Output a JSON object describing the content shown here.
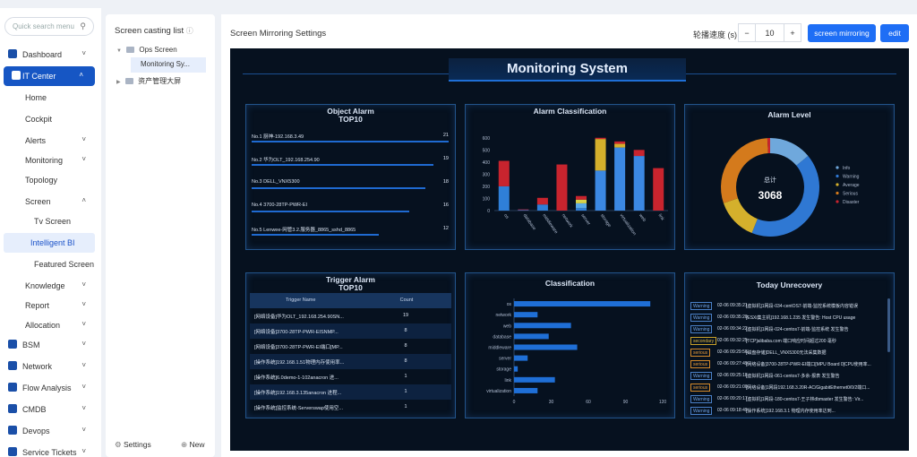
{
  "sidebar": {
    "search_placeholder": "Quick search menu",
    "items": [
      {
        "label": "Dashboard",
        "level": 0,
        "chevron": "down",
        "icon": "home-icon"
      },
      {
        "label": "IT Center",
        "level": 0,
        "chevron": "up",
        "icon": "monitor-icon",
        "active": true
      },
      {
        "label": "Home",
        "level": 1
      },
      {
        "label": "Cockpit",
        "level": 1
      },
      {
        "label": "Alerts",
        "level": 1,
        "chevron": "down"
      },
      {
        "label": "Monitoring",
        "level": 1,
        "chevron": "down"
      },
      {
        "label": "Topology",
        "level": 1
      },
      {
        "label": "Screen",
        "level": 1,
        "chevron": "up"
      },
      {
        "label": "Tv Screen",
        "level": 2
      },
      {
        "label": "Intelligent BI",
        "level": 2,
        "selected": true
      },
      {
        "label": "Featured Screen",
        "level": 2
      },
      {
        "label": "Knowledge",
        "level": 1,
        "chevron": "down"
      },
      {
        "label": "Report",
        "level": 1,
        "chevron": "down"
      },
      {
        "label": "Allocation",
        "level": 1,
        "chevron": "down"
      },
      {
        "label": "BSM",
        "level": 0,
        "chevron": "down",
        "icon": "bsm-icon"
      },
      {
        "label": "Network",
        "level": 0,
        "chevron": "down",
        "icon": "globe-icon"
      },
      {
        "label": "Flow Analysis",
        "level": 0,
        "chevron": "down",
        "icon": "flow-icon"
      },
      {
        "label": "CMDB",
        "level": 0,
        "chevron": "down",
        "icon": "database-icon"
      },
      {
        "label": "Devops",
        "level": 0,
        "chevron": "down",
        "icon": "gear-icon"
      },
      {
        "label": "Service Tickets",
        "level": 0,
        "chevron": "down",
        "icon": "ticket-icon"
      }
    ]
  },
  "tree": {
    "title": "Screen casting list",
    "nodes": [
      {
        "label": "Ops Screen",
        "expanded": true
      },
      {
        "label": "Monitoring Sy...",
        "child": true,
        "selected": true
      },
      {
        "label": "资产管理大屏",
        "expanded": false
      }
    ],
    "settings_label": "Settings",
    "new_label": "New"
  },
  "header": {
    "title": "Screen Mirroring Settings",
    "speed_label": "轮播速度 (s)",
    "speed_value": "10",
    "minus": "−",
    "plus": "+",
    "mirror_button": "screen mirroring",
    "edit_button": "edit"
  },
  "dashboard": {
    "title": "Monitoring System",
    "object_alarm": {
      "title": "Object Alarm\nTOP10",
      "rows": [
        {
          "name": "No.1  厨神-192.168.3.49",
          "value": 21
        },
        {
          "name": "No.2  华为OLT_192.168.254.90",
          "value": 19
        },
        {
          "name": "No.3  DELL_VNX5300",
          "value": 18
        },
        {
          "name": "No.4  3700-28TP-PWR-EI",
          "value": 16
        },
        {
          "name": "No.5  Lenwee-网管3.2.服务器_8865_sshd_8865",
          "value": 12
        }
      ]
    },
    "alarm_level": {
      "title": "Alarm Level",
      "center_label": "总计",
      "total": "3068",
      "legend": [
        "Info",
        "Warning",
        "Average",
        "Serious",
        "Disaster"
      ]
    },
    "trigger_alarm": {
      "title": "Trigger Alarm\nTOP10",
      "col_name": "Trigger Name",
      "col_count": "Count",
      "rows": [
        {
          "name": "[网络设备]华为OLT_192.168.254.90SN...",
          "count": 19
        },
        {
          "name": "[网络设备]3700-28TP-PWR-EISNMP...",
          "count": 8
        },
        {
          "name": "[网络设备]3700-28TP-PWR-EI端口[MP...",
          "count": 8
        },
        {
          "name": "[操作系统]192.168.1.51物理内存使用率...",
          "count": 8
        },
        {
          "name": "[操作系统]6.0demo-1-102anacron 进...",
          "count": 1
        },
        {
          "name": "[操作系统]192.168.3.135anacron 进程...",
          "count": 1
        },
        {
          "name": "[操作系统]监控系统-Serverswap使用空...",
          "count": 1
        }
      ]
    },
    "today_unrecovery": {
      "title": "Today Unrecovery",
      "rows": [
        {
          "level": "Warning",
          "time": "02-06 09:35:21",
          "msg": "[虚拟机]1网段-034-centOS7-前端-监控系统模板内容错误"
        },
        {
          "level": "Warning",
          "time": "02-06 09:35:20",
          "msg": "[ESXi集主机]192.168.1.235 发生警告: Host CPU usage"
        },
        {
          "level": "Warning",
          "time": "02-06 09:34:22",
          "msg": "[虚拟机]1网段-024-centos7-前端-监控系统 发生警告"
        },
        {
          "level": "secondary",
          "time": "02-06 09:32:25",
          "msg": "[TCP]alibaba.com 端口响应时间超过200 毫秒"
        },
        {
          "level": "serious",
          "time": "02-06 09:29:56",
          "msg": "[磁盘存储]DELL_VNX5300无法采集数据"
        },
        {
          "level": "serious",
          "time": "02-06 09:27:49",
          "msg": "[网络设备]3700-28TP-PWR-EI端口[MPU Board 0]CPU使用率..."
        },
        {
          "level": "Warning",
          "time": "02-06 09:25:18",
          "msg": "[虚拟机]1网段-061-centos7-多余-报表 发生警告"
        },
        {
          "level": "serious",
          "time": "02-06 09:21:00",
          "msg": "[网络设备]1网段192.168.3.20R-AC/GigabitEthernet0/0/2端口..."
        },
        {
          "level": "Warning",
          "time": "02-06 09:20:17",
          "msg": "[虚拟机]1网段-180-centos7-王子林dbmaster 发生警告: Vir..."
        },
        {
          "level": "Warning",
          "time": "02-06 09:18:49",
          "msg": "[操作系统]192.168.3.1 物理内存使用率达到..."
        }
      ]
    }
  },
  "chart_data": [
    {
      "type": "bar",
      "title": "Alarm Classification",
      "categories": [
        "os",
        "database",
        "middleware",
        "network",
        "server",
        "storage",
        "virtualization",
        "web",
        "link"
      ],
      "series": [
        {
          "values": [
            200,
            5,
            50,
            0,
            20,
            0,
            0,
            0,
            0
          ]
        },
        {
          "values": [
            0,
            0,
            0,
            0,
            40,
            0,
            0,
            0,
            0
          ]
        },
        {
          "values": [
            0,
            0,
            0,
            0,
            30,
            0,
            0,
            0,
            0
          ]
        },
        {
          "values": [
            0,
            0,
            0,
            0,
            0,
            330,
            520,
            450,
            0
          ]
        },
        {
          "values": [
            0,
            0,
            0,
            0,
            0,
            260,
            30,
            0,
            0
          ]
        },
        {
          "values": [
            210,
            5,
            55,
            380,
            30,
            10,
            20,
            50,
            350
          ]
        }
      ],
      "colors": [
        "#2f7fd8",
        "#5aaae8",
        "#d7d24a",
        "#3b88e3",
        "#d4b02c",
        "#c8242e"
      ],
      "ylim": [
        0,
        650
      ],
      "yticks": [
        0,
        100,
        200,
        300,
        400,
        500,
        600
      ]
    },
    {
      "type": "pie",
      "title": "Alarm Level",
      "categories": [
        "Info",
        "Warning",
        "Average",
        "Serious",
        "Disaster"
      ],
      "values": [
        430,
        1290,
        420,
        900,
        28
      ],
      "colors": [
        "#6fa8dc",
        "#2f78d3",
        "#d4b02c",
        "#d47a1c",
        "#c8242e"
      ]
    },
    {
      "type": "bar",
      "title": "Classification",
      "orientation": "horizontal",
      "categories": [
        "os",
        "network",
        "web",
        "database",
        "middleware",
        "server",
        "storage",
        "link",
        "virtualization"
      ],
      "values": [
        110,
        19,
        46,
        28,
        51,
        11,
        3,
        33,
        19
      ],
      "xlim": [
        0,
        120
      ],
      "xticks": [
        0,
        30,
        60,
        90,
        120
      ]
    }
  ]
}
